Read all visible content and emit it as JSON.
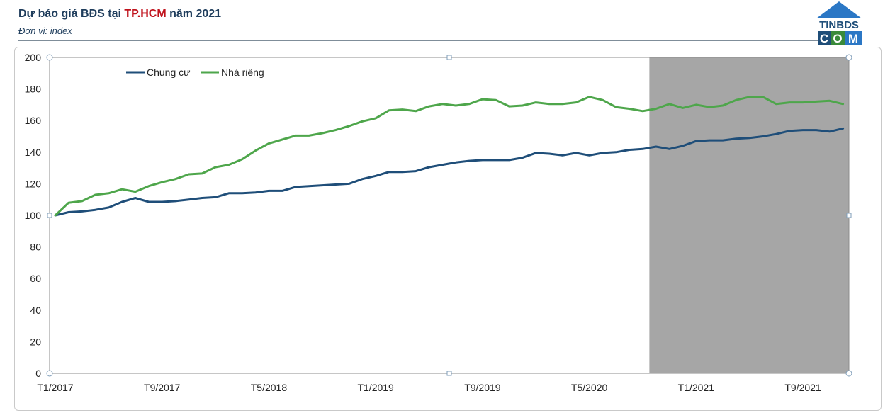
{
  "header": {
    "title_prefix": "Dự báo giá BĐS tại ",
    "title_highlight": "TP.HCM",
    "title_suffix": " năm 2021",
    "subtitle": "Đơn vị: index"
  },
  "logo": {
    "line1": "TINBDS",
    "line2_left": "C",
    "line2_mid": "O",
    "line2_right": "M"
  },
  "chart_data": {
    "type": "line",
    "title": "Dự báo giá BĐS tại TP.HCM năm 2021",
    "ylabel": "index",
    "ylim": [
      0,
      200
    ],
    "yticks": [
      0,
      20,
      40,
      60,
      80,
      100,
      120,
      140,
      160,
      180,
      200
    ],
    "x_tick_labels": [
      "T1/2017",
      "T9/2017",
      "T5/2018",
      "T1/2019",
      "T9/2019",
      "T5/2020",
      "T1/2021",
      "T9/2021"
    ],
    "x_tick_indices": [
      0,
      8,
      16,
      24,
      32,
      40,
      48,
      56
    ],
    "forecast_start_index": 44.5,
    "legend": [
      "Chung cư",
      "Nhà riêng"
    ],
    "colors": {
      "Chung cư": "#1f4e79",
      "Nhà riêng": "#4ea64b",
      "forecast_band": "#a6a6a6"
    },
    "series": [
      {
        "name": "Chung cư",
        "values": [
          100,
          102,
          102.5,
          103.5,
          105,
          108.5,
          111,
          108.5,
          108.5,
          109,
          110,
          111,
          111.5,
          114,
          114,
          114.5,
          115.5,
          115.5,
          118,
          118.5,
          119,
          119.5,
          120,
          123,
          125,
          127.5,
          127.5,
          128,
          130.5,
          132,
          133.5,
          134.5,
          135,
          135,
          135,
          136.5,
          139.5,
          139,
          138,
          139.5,
          138,
          139.5,
          140,
          141.5,
          142,
          143.5,
          142,
          144,
          147,
          147.5,
          147.5,
          148.5,
          149,
          150,
          151.5,
          153.5,
          154,
          154,
          153,
          155
        ]
      },
      {
        "name": "Nhà riêng",
        "values": [
          100,
          108,
          109,
          113,
          114,
          116.5,
          115,
          118.5,
          121,
          123,
          126,
          126.5,
          130.5,
          132,
          135.5,
          141,
          145.5,
          148,
          150.5,
          150.5,
          152,
          154,
          156.5,
          159.5,
          161.5,
          166.5,
          167,
          166,
          169,
          170.5,
          169.5,
          170.5,
          173.5,
          173,
          169,
          169.5,
          171.5,
          170.5,
          170.5,
          171.5,
          175,
          173,
          168.5,
          167.5,
          166,
          167.5,
          170.5,
          168,
          170,
          168.5,
          169.5,
          173,
          175,
          175,
          170.5,
          171.5,
          171.5,
          172,
          172.5,
          170.5
        ]
      }
    ]
  }
}
